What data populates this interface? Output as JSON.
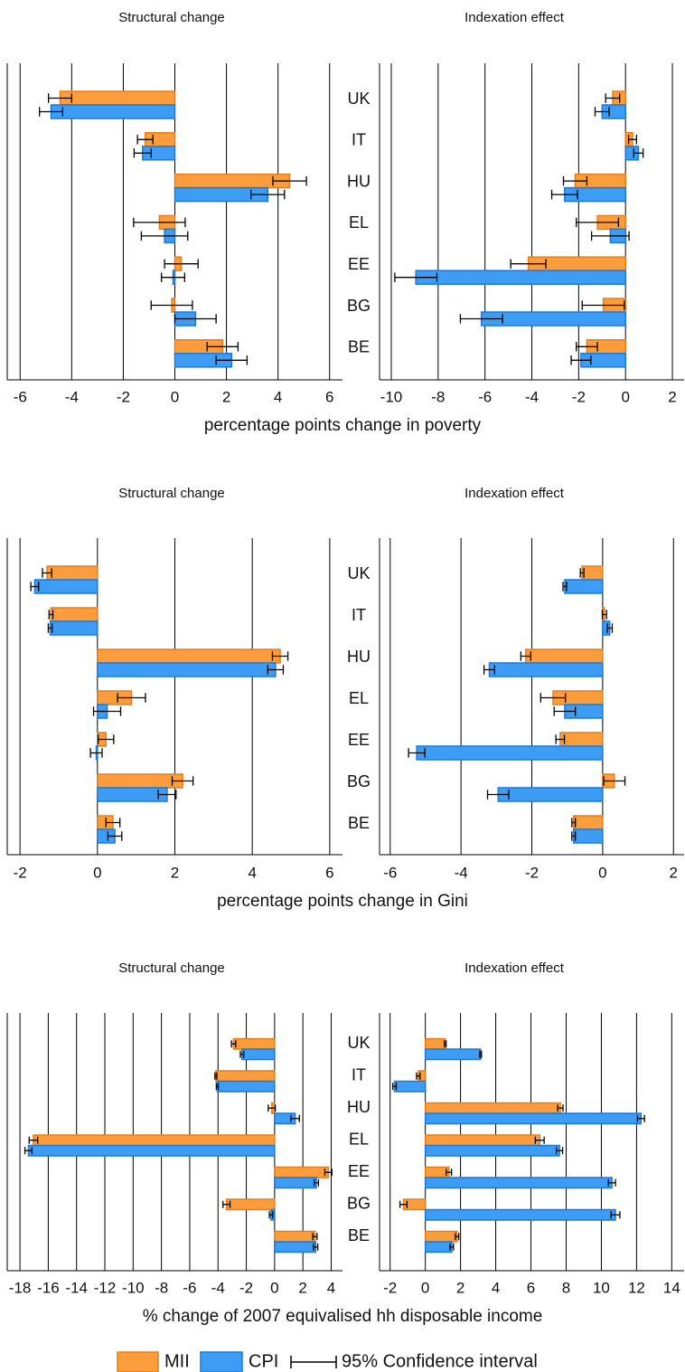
{
  "chart_data": [
    {
      "type": "bar",
      "orientation": "horizontal",
      "title": "Structural change",
      "xlabel": "percentage points change in poverty",
      "error_label": "95% Confidence interval",
      "series": [
        {
          "name": "MII",
          "color": "#fb9d3c",
          "values": [
            -4.45,
            -1.15,
            4.45,
            -0.6,
            0.25,
            -0.12,
            1.85
          ],
          "errors": [
            0.45,
            0.3,
            0.65,
            1.0,
            0.65,
            0.8,
            0.6
          ]
        },
        {
          "name": "CPI",
          "color": "#3d9df5",
          "values": [
            -4.8,
            -1.25,
            3.6,
            -0.4,
            -0.07,
            0.8,
            2.2
          ],
          "errors": [
            0.45,
            0.33,
            0.65,
            0.9,
            0.45,
            0.8,
            0.6
          ]
        }
      ],
      "xlim": [
        -6.5,
        6.5
      ],
      "xticks": [
        -6,
        -4,
        -2,
        0,
        2,
        4,
        6
      ],
      "grid": true
    },
    {
      "type": "bar",
      "orientation": "horizontal",
      "title": "Indexation effect",
      "categories": [
        "UK",
        "IT",
        "HU",
        "EL",
        "EE",
        "BG",
        "BE"
      ],
      "series": [
        {
          "color": "#fb9d3c",
          "values": [
            -0.55,
            0.3,
            -2.15,
            -1.2,
            -4.15,
            -0.95,
            -1.65
          ],
          "errors": [
            0.3,
            0.17,
            0.5,
            0.9,
            0.75,
            0.9,
            0.45
          ]
        },
        {
          "color": "#3d9df5",
          "values": [
            -1.0,
            0.55,
            -2.6,
            -0.65,
            -8.95,
            -6.15,
            -1.9
          ],
          "errors": [
            0.3,
            0.2,
            0.55,
            0.8,
            0.9,
            0.9,
            0.42
          ]
        }
      ],
      "xlim": [
        -10.5,
        2.5
      ],
      "xticks": [
        -10,
        -8,
        -6,
        -4,
        -2,
        0,
        2
      ],
      "grid": true
    },
    {
      "type": "bar",
      "orientation": "horizontal",
      "title": "Structural change",
      "xlabel": "percentage points change in Gini",
      "series": [
        {
          "color": "#fb9d3c",
          "values": [
            -1.3,
            -1.2,
            4.72,
            0.88,
            0.22,
            2.2,
            0.4
          ],
          "errors": [
            0.12,
            0.05,
            0.2,
            0.36,
            0.2,
            0.27,
            0.18
          ]
        },
        {
          "color": "#3d9df5",
          "values": [
            -1.62,
            -1.22,
            4.6,
            0.25,
            -0.03,
            1.8,
            0.45
          ],
          "errors": [
            0.1,
            0.05,
            0.2,
            0.35,
            0.15,
            0.23,
            0.18
          ]
        }
      ],
      "xlim": [
        -2.33,
        6.33
      ],
      "xticks": [
        -2,
        0,
        2,
        4,
        6
      ],
      "grid": true
    },
    {
      "type": "bar",
      "orientation": "horizontal",
      "title": "Indexation effect",
      "categories": [
        "UK",
        "IT",
        "HU",
        "EL",
        "EE",
        "BG",
        "BE"
      ],
      "series": [
        {
          "color": "#fb9d3c",
          "values": [
            -0.58,
            0.05,
            -2.17,
            -1.4,
            -1.2,
            0.33,
            -0.82
          ],
          "errors": [
            0.05,
            0.06,
            0.14,
            0.35,
            0.12,
            0.3,
            0.05
          ]
        },
        {
          "color": "#3d9df5",
          "values": [
            -1.07,
            0.2,
            -3.2,
            -1.07,
            -5.25,
            -2.95,
            -0.82
          ],
          "errors": [
            0.05,
            0.07,
            0.15,
            0.3,
            0.23,
            0.3,
            0.05
          ]
        }
      ],
      "xlim": [
        -6.3,
        2.3
      ],
      "xticks": [
        -6,
        -4,
        -2,
        0,
        2
      ],
      "grid": true
    },
    {
      "type": "bar",
      "orientation": "horizontal",
      "title": "Structural change",
      "xlabel": "% change of 2007 equivalised hh disposable income",
      "series": [
        {
          "color": "#fb9d3c",
          "values": [
            -2.9,
            -4.15,
            -0.2,
            -17.05,
            3.8,
            -3.4,
            2.85
          ],
          "errors": [
            0.15,
            0.07,
            0.25,
            0.3,
            0.25,
            0.25,
            0.15
          ]
        },
        {
          "color": "#3d9df5",
          "values": [
            -2.3,
            -4.05,
            1.45,
            -17.4,
            2.95,
            -0.25,
            2.9
          ],
          "errors": [
            0.12,
            0.07,
            0.3,
            0.25,
            0.15,
            0.12,
            0.15
          ]
        }
      ],
      "xlim": [
        -18.9,
        4.8
      ],
      "xticks": [
        -18,
        -16,
        -14,
        -12,
        -10,
        -8,
        -6,
        -4,
        -2,
        0,
        2,
        4
      ],
      "grid": true
    },
    {
      "type": "bar",
      "orientation": "horizontal",
      "title": "Indexation effect",
      "categories": [
        "UK",
        "IT",
        "HU",
        "EL",
        "EE",
        "BG",
        "BE"
      ],
      "series": [
        {
          "color": "#fb9d3c",
          "values": [
            1.13,
            -0.4,
            7.67,
            6.5,
            1.34,
            -1.24,
            1.8
          ],
          "errors": [
            0.05,
            0.1,
            0.15,
            0.25,
            0.15,
            0.2,
            0.1
          ]
        },
        {
          "color": "#3d9df5",
          "values": [
            3.14,
            -1.75,
            12.25,
            7.62,
            10.6,
            10.8,
            1.5
          ],
          "errors": [
            0.05,
            0.1,
            0.2,
            0.18,
            0.2,
            0.25,
            0.1
          ]
        }
      ],
      "xlim": [
        -2.6,
        14.7
      ],
      "xticks": [
        -2,
        0,
        2,
        4,
        6,
        8,
        10,
        12,
        14
      ],
      "grid": true
    }
  ]
}
